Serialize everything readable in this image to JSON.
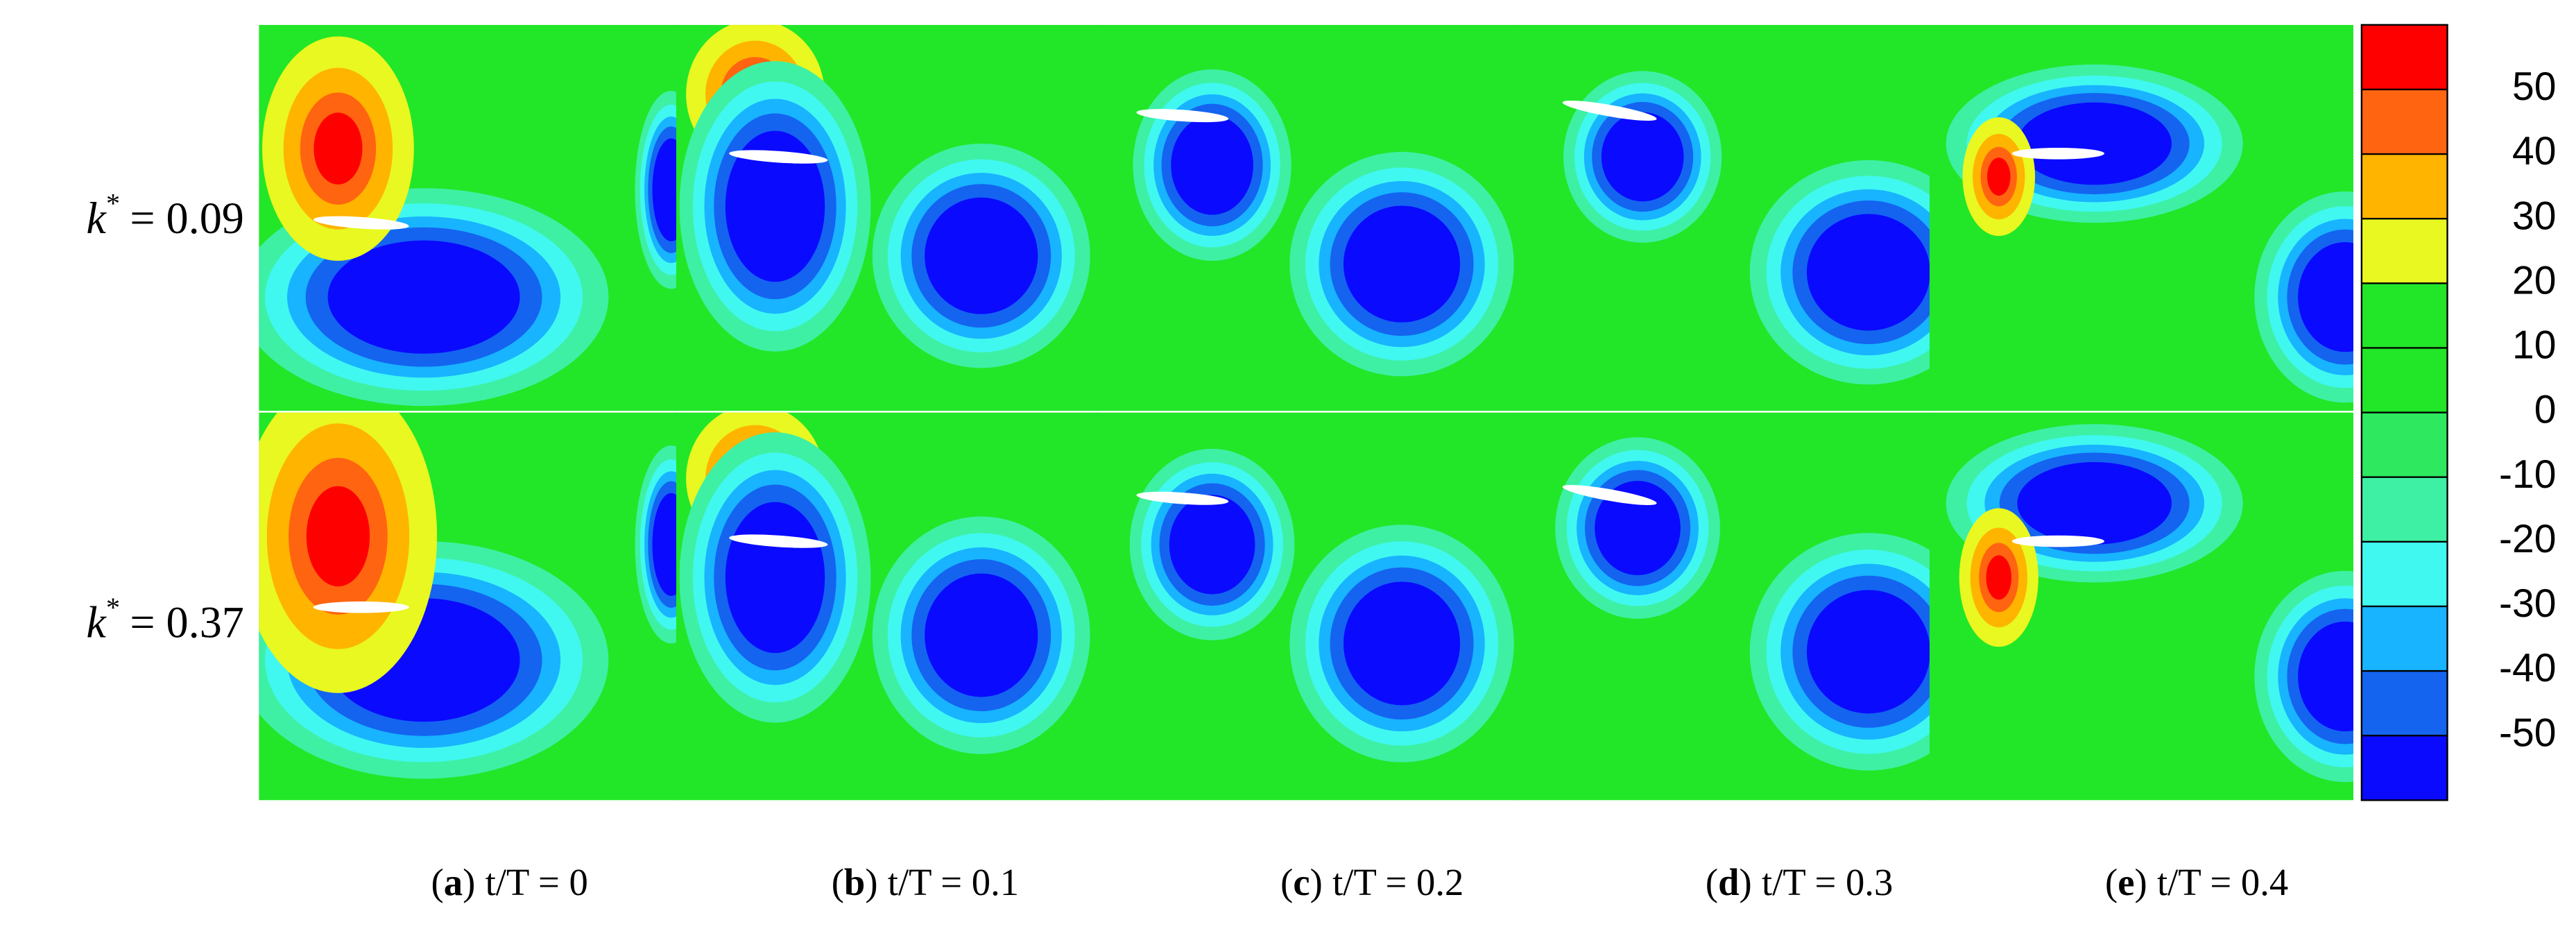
{
  "chart_data": {
    "type": "contour-grid",
    "row_labels": [
      {
        "base": "k",
        "sup": "*",
        "rest": "= 0.09"
      },
      {
        "base": "k",
        "sup": "*",
        "rest": "= 0.37"
      }
    ],
    "captions": [
      {
        "open": "(",
        "letter": "a",
        "close": ")",
        "text": "t/T = 0"
      },
      {
        "open": "(",
        "letter": "b",
        "close": ")",
        "text": "t/T = 0.1"
      },
      {
        "open": "(",
        "letter": "c",
        "close": ")",
        "text": "t/T = 0.2"
      },
      {
        "open": "(",
        "letter": "d",
        "close": ")",
        "text": "t/T = 0.3"
      },
      {
        "open": "(",
        "letter": "e",
        "close": ")",
        "text": "t/T = 0.4"
      }
    ],
    "colorbar": {
      "ylim": [
        -60,
        60
      ],
      "yticks": [
        50,
        40,
        30,
        20,
        10,
        0,
        -10,
        -20,
        -30,
        -40,
        -50
      ],
      "colors": [
        "#0a0aff",
        "#1464f0",
        "#18b4ff",
        "#40f8f0",
        "#3ef0a4",
        "#2ee860",
        "#22e628",
        "#22e628",
        "#e8f820",
        "#ffb400",
        "#ff6410",
        "#ff0000"
      ]
    }
  }
}
